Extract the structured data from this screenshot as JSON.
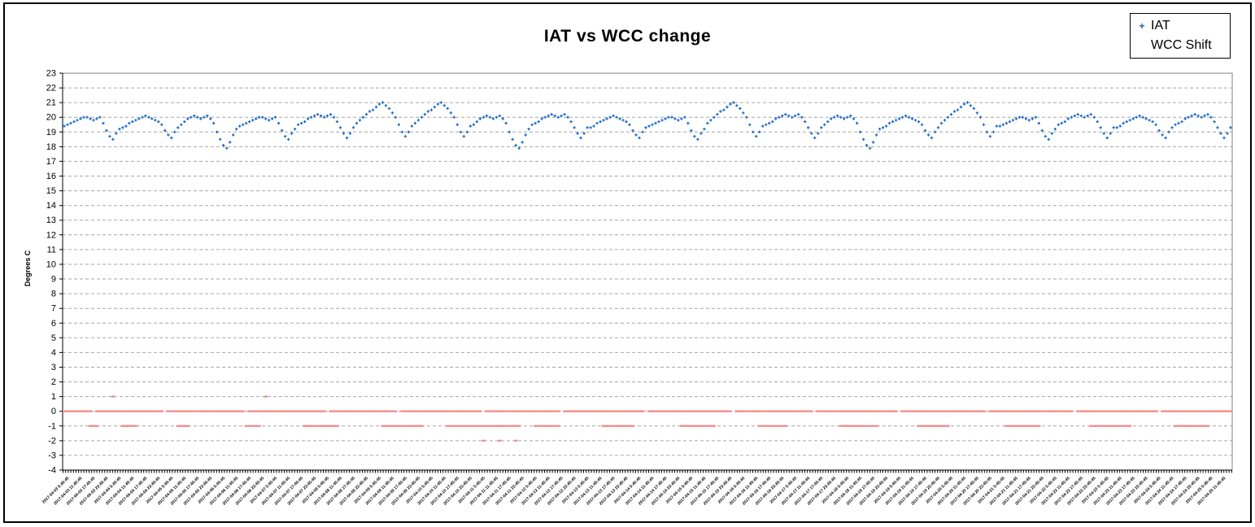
{
  "chart_data": {
    "type": "scatter",
    "title": "IAT vs WCC change",
    "xlabel": "",
    "ylabel": "Degrees C",
    "ylim": [
      -4,
      23
    ],
    "ytick_step": 1,
    "grid": "horizontal-dashed",
    "legend_position": "top-right",
    "colors": {
      "iat": "#1464C3",
      "wcc": "#FA8A8A",
      "grid": "#A6A6A6",
      "plot_border": "#808080",
      "axis": "#000000",
      "background": "#FFFFFF"
    },
    "x_labels": [
      "2017-04-03 5:45:45",
      "2017-04-03 11:45:45",
      "2017-04-03 17:45:45",
      "2017-04-03 23:45:45",
      "2017-04-04 5:45:45",
      "2017-04-04 11:45:45",
      "2017-04-04 17:45:45",
      "2017-04-04 23:45:45",
      "2017-04-05 5:45:45",
      "2017-04-05 11:45:45",
      "2017-04-05 17:45:45",
      "2017-04-05 23:45:45",
      "2017-04-06 5:45:45",
      "2017-04-06 11:45:45",
      "2017-04-06 17:45:45",
      "2017-04-06 23:45:45",
      "2017-04-07 5:45:45",
      "2017-04-07 11:45:45",
      "2017-04-07 17:45:45",
      "2017-04-07 23:45:45",
      "2017-04-08 5:45:45",
      "2017-04-08 11:45:45",
      "2017-04-08 17:45:45",
      "2017-04-08 23:45:45",
      "2017-04-09 5:45:45",
      "2017-04-09 11:45:45",
      "2017-04-09 17:45:45",
      "2017-04-09 23:45:45",
      "2017-04-10 5:45:45",
      "2017-04-10 11:45:45",
      "2017-04-10 17:45:45",
      "2017-04-10 23:45:45",
      "2017-04-11 5:45:45",
      "2017-04-11 11:45:45",
      "2017-04-11 17:45:45",
      "2017-04-11 23:45:45",
      "2017-04-12 5:45:45",
      "2017-04-12 11:45:45",
      "2017-04-12 17:45:45",
      "2017-04-12 23:45:45",
      "2017-04-13 5:45:45",
      "2017-04-13 11:45:45",
      "2017-04-13 17:45:45",
      "2017-04-13 23:45:45",
      "2017-04-14 5:45:45",
      "2017-04-14 11:45:45",
      "2017-04-14 17:45:45",
      "2017-04-14 23:45:45",
      "2017-04-15 5:45:45",
      "2017-04-15 11:45:45",
      "2017-04-15 17:45:45",
      "2017-04-15 23:45:45",
      "2017-04-16 5:45:45",
      "2017-04-16 11:45:45",
      "2017-04-16 17:45:45",
      "2017-04-16 23:45:45",
      "2017-04-17 5:45:45",
      "2017-04-17 11:45:45",
      "2017-04-17 17:45:45",
      "2017-04-17 23:45:45",
      "2017-04-18 5:45:45",
      "2017-04-18 11:45:45",
      "2017-04-18 17:45:45",
      "2017-04-18 23:45:45",
      "2017-04-19 5:45:45",
      "2017-04-19 11:45:45",
      "2017-04-19 17:45:45",
      "2017-04-19 23:45:45",
      "2017-04-20 5:45:45",
      "2017-04-20 11:45:45",
      "2017-04-20 17:45:45",
      "2017-04-20 23:45:45",
      "2017-04-21 5:45:45",
      "2017-04-21 11:45:45",
      "2017-04-21 17:45:45",
      "2017-04-21 23:45:45",
      "2017-04-22 5:45:45",
      "2017-04-22 11:45:45",
      "2017-04-22 17:45:45",
      "2017-04-22 23:45:45",
      "2017-04-23 5:45:45",
      "2017-04-23 11:45:45",
      "2017-04-23 17:45:45",
      "2017-04-23 23:45:45",
      "2017-04-24 5:45:45",
      "2017-04-24 11:45:45",
      "2017-04-24 17:45:45",
      "2017-04-24 23:45:45",
      "2017-04-25 5:45:45",
      "2017-04-25 11:45:45"
    ],
    "series": [
      {
        "name": "IAT",
        "marker": "plus",
        "color": "#1464C3",
        "values": [
          19.4,
          19.5,
          19.6,
          19.7,
          19.8,
          19.9,
          20,
          20,
          19.9,
          19.8,
          19.9,
          20,
          19.6,
          19.1,
          18.7,
          18.5,
          18.9,
          19.2,
          19.3,
          19.4,
          19.6,
          19.7,
          19.8,
          19.9,
          20,
          20.1,
          20,
          19.9,
          19.8,
          19.7,
          19.5,
          19.1,
          18.8,
          18.6,
          19,
          19.3,
          19.5,
          19.7,
          19.9,
          20,
          20.1,
          20,
          19.9,
          20,
          20.1,
          19.9,
          19.6,
          19,
          18.5,
          18.1,
          17.9,
          18.3,
          18.8,
          19.2,
          19.4,
          19.5,
          19.6,
          19.7,
          19.8,
          19.9,
          20,
          20,
          19.9,
          19.8,
          19.9,
          20,
          19.6,
          19.1,
          18.7,
          18.5,
          18.9,
          19.2,
          19.5,
          19.6,
          19.7,
          19.9,
          20,
          20.1,
          20.2,
          20.1,
          20,
          20.1,
          20.2,
          20,
          19.7,
          19.3,
          18.9,
          18.6,
          18.9,
          19.3,
          19.6,
          19.8,
          20,
          20.2,
          20.4,
          20.5,
          20.7,
          20.9,
          21,
          20.8,
          20.6,
          20.3,
          20,
          19.5,
          19,
          18.7,
          19,
          19.4,
          19.6,
          19.8,
          20,
          20.2,
          20.4,
          20.5,
          20.7,
          20.9,
          21,
          20.8,
          20.6,
          20.3,
          20,
          19.5,
          19,
          18.7,
          19,
          19.4,
          19.5,
          19.7,
          19.9,
          20,
          20.1,
          20,
          19.9,
          20,
          20.1,
          19.9,
          19.6,
          19,
          18.5,
          18.1,
          17.9,
          18.3,
          18.8,
          19.2,
          19.5,
          19.6,
          19.7,
          19.9,
          20,
          20.1,
          20.2,
          20.1,
          20,
          20.1,
          20.2,
          20,
          19.7,
          19.3,
          18.9,
          18.6,
          18.9,
          19.3,
          19.3,
          19.4,
          19.6,
          19.7,
          19.8,
          19.9,
          20,
          20.1,
          20,
          19.9,
          19.8,
          19.7,
          19.5,
          19.1,
          18.8,
          18.6,
          19,
          19.3,
          19.4,
          19.5,
          19.6,
          19.7,
          19.8,
          19.9,
          20,
          20,
          19.9,
          19.8,
          19.9,
          20,
          19.6,
          19.1,
          18.7,
          18.5,
          18.9,
          19.2,
          19.6,
          19.8,
          20,
          20.2,
          20.4,
          20.5,
          20.7,
          20.9,
          21,
          20.8,
          20.6,
          20.3,
          20,
          19.5,
          19,
          18.7,
          19,
          19.4,
          19.5,
          19.6,
          19.7,
          19.9,
          20,
          20.1,
          20.2,
          20.1,
          20,
          20.1,
          20.2,
          20,
          19.7,
          19.3,
          18.9,
          18.6,
          18.9,
          19.3,
          19.5,
          19.7,
          19.9,
          20,
          20.1,
          20,
          19.9,
          20,
          20.1,
          19.9,
          19.6,
          19,
          18.5,
          18.1,
          17.9,
          18.3,
          18.8,
          19.2,
          19.3,
          19.4,
          19.6,
          19.7,
          19.8,
          19.9,
          20,
          20.1,
          20,
          19.9,
          19.8,
          19.7,
          19.5,
          19.1,
          18.8,
          18.6,
          19,
          19.3,
          19.6,
          19.8,
          20,
          20.2,
          20.4,
          20.5,
          20.7,
          20.9,
          21,
          20.8,
          20.6,
          20.3,
          20,
          19.5,
          19,
          18.7,
          19,
          19.4,
          19.4,
          19.5,
          19.6,
          19.7,
          19.8,
          19.9,
          20,
          20,
          19.9,
          19.8,
          19.9,
          20,
          19.6,
          19.1,
          18.7,
          18.5,
          18.9,
          19.2,
          19.5,
          19.6,
          19.7,
          19.9,
          20,
          20.1,
          20.2,
          20.1,
          20,
          20.1,
          20.2,
          20,
          19.7,
          19.3,
          18.9,
          18.6,
          18.9,
          19.3,
          19.3,
          19.4,
          19.6,
          19.7,
          19.8,
          19.9,
          20,
          20.1,
          20,
          19.9,
          19.8,
          19.7,
          19.5,
          19.1,
          18.8,
          18.6,
          19,
          19.3,
          19.5,
          19.6,
          19.7,
          19.9,
          20,
          20.1,
          20.2,
          20.1,
          20,
          20.1,
          20.2,
          20,
          19.7,
          19.3,
          18.9,
          18.6,
          18.9,
          19.3
        ]
      },
      {
        "name": "WCC Shift",
        "marker": "dash",
        "color": "#FA8A8A",
        "runs": [
          [
            0,
            8,
            0
          ],
          [
            10,
            30,
            0
          ],
          [
            32,
            55,
            0
          ],
          [
            57,
            80,
            0
          ],
          [
            82,
            102,
            0
          ],
          [
            104,
            128,
            0
          ],
          [
            130,
            152,
            0
          ],
          [
            154,
            178,
            0
          ],
          [
            180,
            205,
            0
          ],
          [
            207,
            230,
            0
          ],
          [
            232,
            256,
            0
          ],
          [
            258,
            283,
            0
          ],
          [
            285,
            310,
            0
          ],
          [
            312,
            336,
            0
          ],
          [
            338,
            359,
            0
          ],
          [
            8,
            10,
            -1
          ],
          [
            18,
            22,
            -1
          ],
          [
            35,
            38,
            -1
          ],
          [
            56,
            60,
            -1
          ],
          [
            74,
            84,
            -1
          ],
          [
            98,
            110,
            -1
          ],
          [
            118,
            140,
            -1
          ],
          [
            145,
            152,
            -1
          ],
          [
            166,
            175,
            -1
          ],
          [
            190,
            200,
            -1
          ],
          [
            214,
            222,
            -1
          ],
          [
            239,
            250,
            -1
          ],
          [
            263,
            272,
            -1
          ],
          [
            290,
            300,
            -1
          ],
          [
            316,
            328,
            -1
          ],
          [
            342,
            352,
            -1
          ]
        ],
        "outliers": [
          [
            15,
            1
          ],
          [
            62,
            1
          ],
          [
            129,
            -2
          ],
          [
            134,
            -2
          ],
          [
            139,
            -2
          ]
        ]
      }
    ]
  },
  "legend": {
    "items": [
      {
        "label": "IAT"
      },
      {
        "label": "WCC Shift"
      }
    ]
  }
}
